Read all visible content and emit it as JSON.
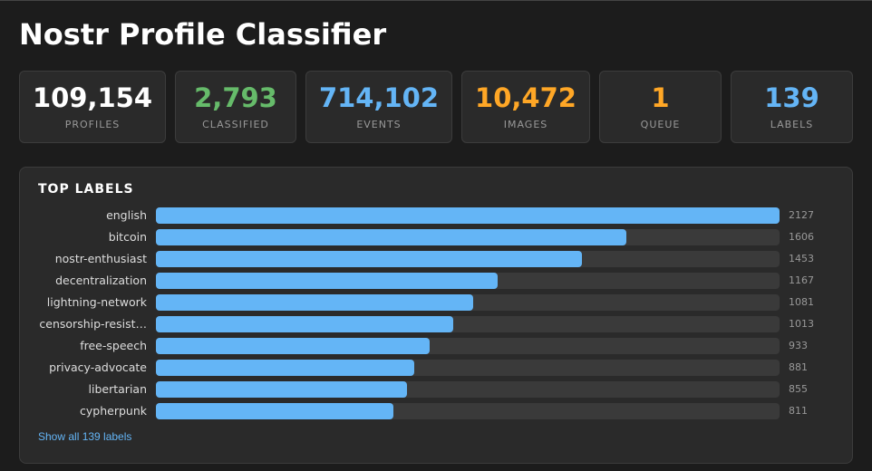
{
  "header": {
    "title": "Nostr Profile Classifier"
  },
  "stats": [
    {
      "value": "109,154",
      "label": "PROFILES",
      "color": "#ffffff"
    },
    {
      "value": "2,793",
      "label": "CLASSIFIED",
      "color": "#66bb6a"
    },
    {
      "value": "714,102",
      "label": "EVENTS",
      "color": "#64b5f6"
    },
    {
      "value": "10,472",
      "label": "IMAGES",
      "color": "#ffa726"
    },
    {
      "value": "1",
      "label": "QUEUE",
      "color": "#ffa726"
    },
    {
      "value": "139",
      "label": "LABELS",
      "color": "#64b5f6"
    }
  ],
  "top_labels": {
    "title": "TOP LABELS",
    "categories": [
      "english",
      "bitcoin",
      "nostr-enthusiast",
      "decentralization",
      "lightning-network",
      "censorship-resist…",
      "free-speech",
      "privacy-advocate",
      "libertarian",
      "cypherpunk"
    ],
    "values": [
      2127,
      1606,
      1453,
      1167,
      1081,
      1013,
      933,
      881,
      855,
      811
    ],
    "color": "#64b5f6",
    "link": "Show all 139 labels"
  }
}
